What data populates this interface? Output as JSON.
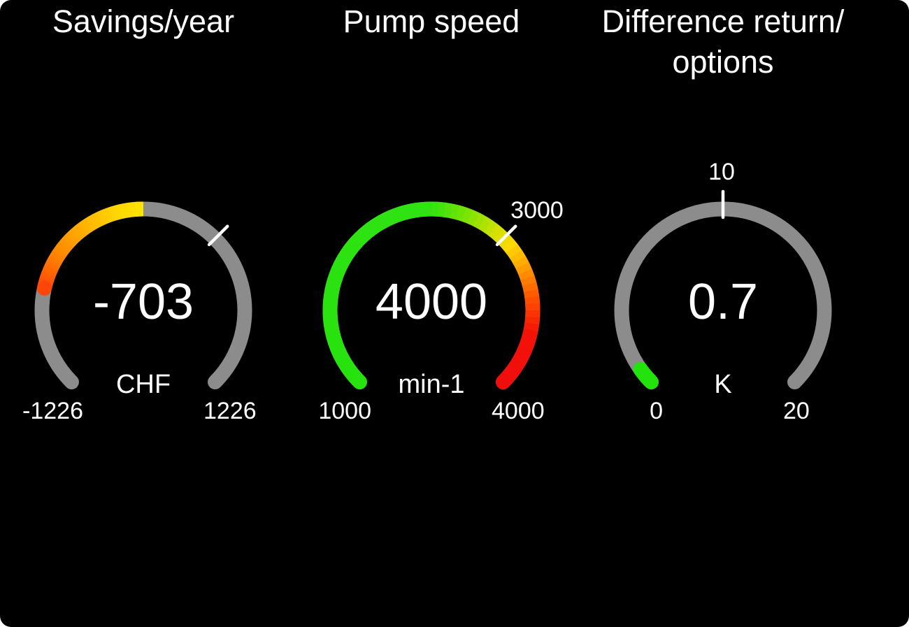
{
  "page": {
    "background": "#ffffff",
    "card_background": "#000000",
    "text_color": "#ffffff"
  },
  "chart_data": [
    {
      "type": "gauge",
      "title": "Savings/year",
      "value": -703,
      "value_text": "-703",
      "unit": "CHF",
      "min": -1226,
      "max": 1226,
      "min_label": "-1226",
      "max_label": "1226",
      "marker": {
        "fraction": 0.6667,
        "label": ""
      },
      "fill_anchor": "zero",
      "caps": "start-only",
      "arc_span_degrees": 270,
      "track_color": "#8c8c8c",
      "marker_color": "#ffffff",
      "gradient": [
        [
          0,
          "#ff4508"
        ],
        [
          0.25,
          "#ff8400"
        ],
        [
          0.55,
          "#ffb300"
        ],
        [
          0.8,
          "#ffd600"
        ],
        [
          1,
          "#ffe300"
        ]
      ]
    },
    {
      "type": "gauge",
      "title": "Pump speed",
      "value": 4000,
      "value_text": "4000",
      "unit": "min-1",
      "min": 1000,
      "max": 4000,
      "min_label": "1000",
      "max_label": "4000",
      "marker": {
        "value": 3000,
        "label": "3000"
      },
      "fill_anchor": "min",
      "caps": "both",
      "arc_span_degrees": 270,
      "track_color": "#8c8c8c",
      "marker_color": "#ffffff",
      "gradient": [
        [
          0,
          "#26e20d"
        ],
        [
          0.5,
          "#30e312"
        ],
        [
          0.58,
          "#7fe400"
        ],
        [
          0.65,
          "#d8e000"
        ],
        [
          0.69,
          "#ffd800"
        ],
        [
          0.75,
          "#ff9400"
        ],
        [
          0.81,
          "#ff4f00"
        ],
        [
          0.88,
          "#f31208"
        ],
        [
          1,
          "#f20d0d"
        ]
      ]
    },
    {
      "type": "gauge",
      "title": "Difference return/ options",
      "value": 0.7,
      "value_text": "0.7",
      "unit": "K",
      "min": 0,
      "max": 20,
      "min_label": "0",
      "max_label": "20",
      "marker": {
        "value": 10,
        "label": "10"
      },
      "fill_anchor": "min",
      "caps": "both",
      "arc_span_degrees": 270,
      "track_color": "#8c8c8c",
      "marker_color": "#ffffff",
      "gradient": [
        [
          0,
          "#22e30c"
        ],
        [
          1,
          "#22e30c"
        ]
      ]
    }
  ]
}
